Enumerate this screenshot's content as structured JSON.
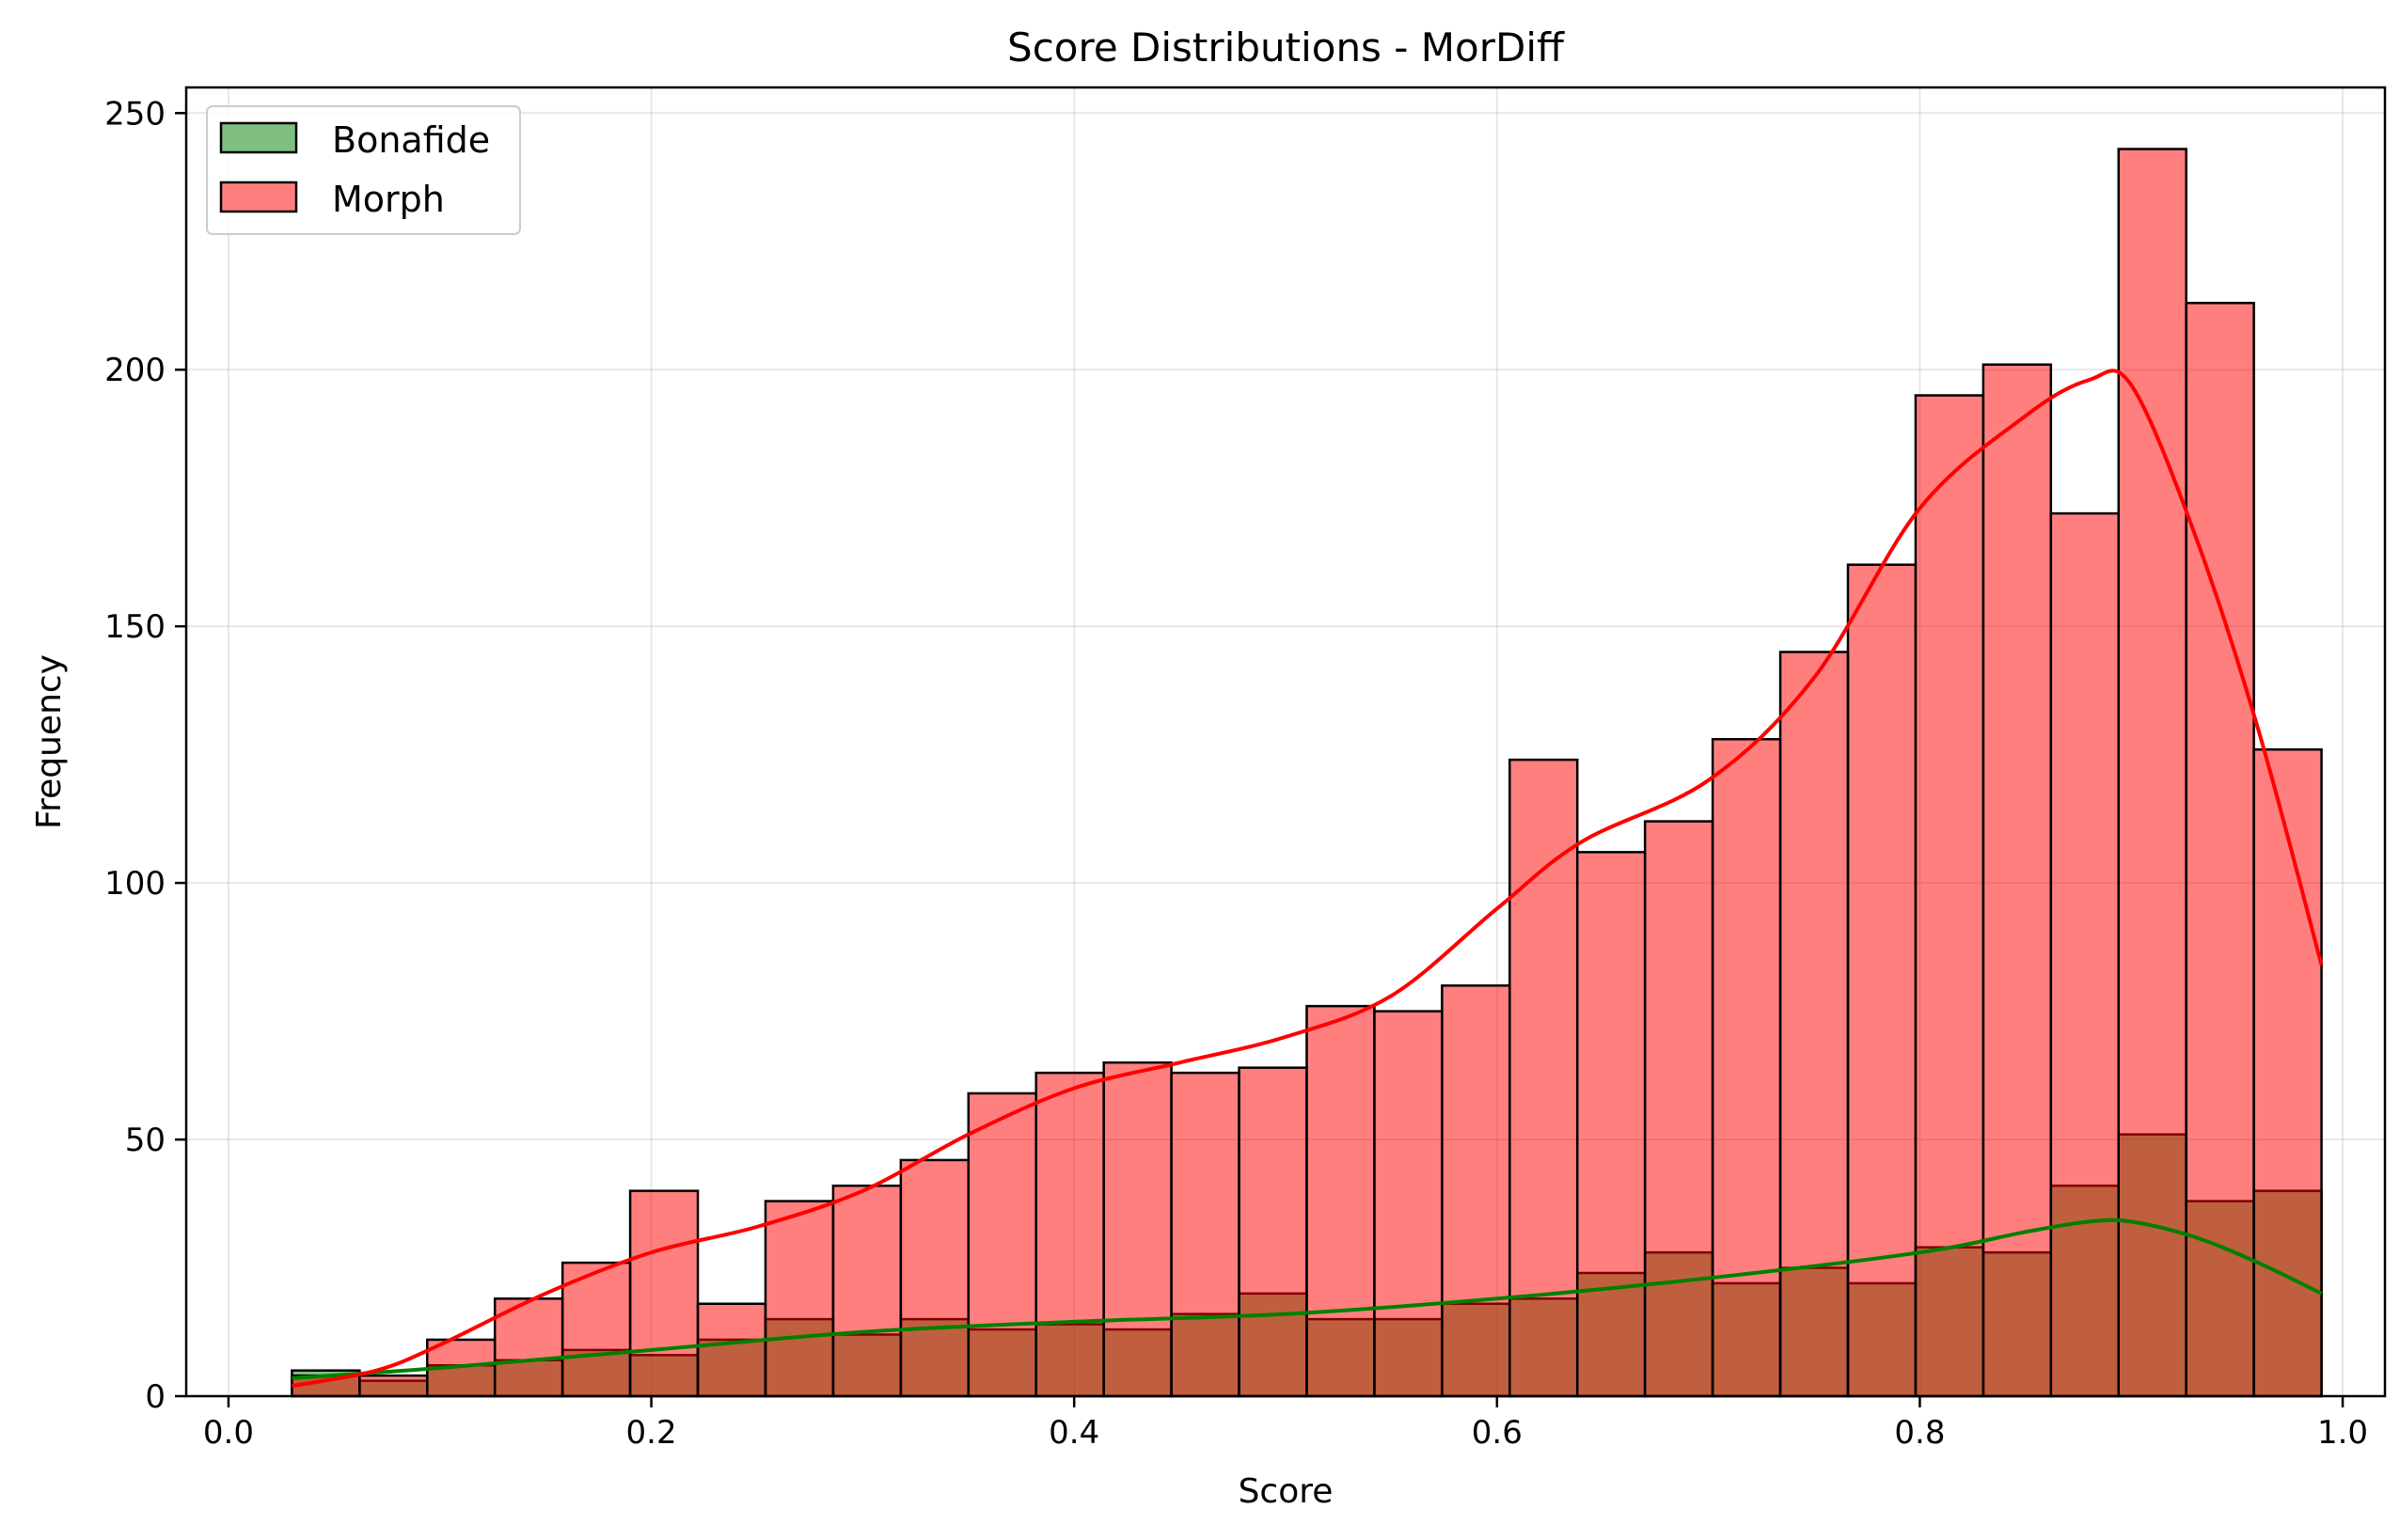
{
  "chart_data": {
    "type": "histogram",
    "title": "Score Distributions - MorDiff",
    "xlabel": "Score",
    "ylabel": "Frequency",
    "xlim": [
      -0.02,
      1.02
    ],
    "ylim": [
      0,
      255
    ],
    "xticks": [
      0.0,
      0.2,
      0.4,
      0.6,
      0.8,
      1.0
    ],
    "xtick_labels": [
      "0.0",
      "0.2",
      "0.4",
      "0.6",
      "0.8",
      "1.0"
    ],
    "yticks": [
      0,
      50,
      100,
      150,
      200,
      250
    ],
    "ytick_labels": [
      "0",
      "50",
      "100",
      "150",
      "200",
      "250"
    ],
    "grid": true,
    "legend_position": "top-left",
    "bin_edges": [
      0.03,
      0.062,
      0.094,
      0.126,
      0.158,
      0.19,
      0.222,
      0.254,
      0.286,
      0.318,
      0.35,
      0.382,
      0.414,
      0.446,
      0.478,
      0.51,
      0.542,
      0.574,
      0.606,
      0.638,
      0.67,
      0.702,
      0.734,
      0.766,
      0.798,
      0.83,
      0.862,
      0.894,
      0.926,
      0.958,
      0.99
    ],
    "series": [
      {
        "name": "Bonafide",
        "color": "#008000",
        "fill": "rgba(0,128,0,0.5)",
        "kde_color": "#008000",
        "values": [
          5,
          3,
          6,
          7,
          9,
          8,
          11,
          15,
          12,
          15,
          13,
          14,
          13,
          16,
          20,
          15,
          15,
          18,
          19,
          24,
          28,
          22,
          25,
          22,
          29,
          28,
          41,
          51,
          38,
          40
        ],
        "kde": [
          [
            0.03,
            3.5
          ],
          [
            0.1,
            5.5
          ],
          [
            0.2,
            9
          ],
          [
            0.3,
            12.5
          ],
          [
            0.4,
            14.5
          ],
          [
            0.5,
            16
          ],
          [
            0.6,
            19
          ],
          [
            0.7,
            23
          ],
          [
            0.8,
            28
          ],
          [
            0.85,
            32
          ],
          [
            0.88,
            34
          ],
          [
            0.9,
            34
          ],
          [
            0.93,
            31
          ],
          [
            0.96,
            26
          ],
          [
            0.99,
            20
          ]
        ]
      },
      {
        "name": "Morph",
        "color": "#ff0000",
        "fill": "rgba(255,0,0,0.5)",
        "kde_color": "#ff0000",
        "values": [
          4,
          4,
          11,
          19,
          26,
          40,
          18,
          38,
          41,
          46,
          59,
          63,
          65,
          63,
          64,
          76,
          75,
          80,
          124,
          106,
          112,
          128,
          145,
          162,
          195,
          201,
          172,
          243,
          213,
          126
        ],
        "kde": [
          [
            0.03,
            2
          ],
          [
            0.07,
            5
          ],
          [
            0.1,
            10
          ],
          [
            0.15,
            20
          ],
          [
            0.2,
            28
          ],
          [
            0.25,
            33
          ],
          [
            0.3,
            40
          ],
          [
            0.35,
            51
          ],
          [
            0.4,
            60
          ],
          [
            0.45,
            65
          ],
          [
            0.5,
            70
          ],
          [
            0.55,
            78
          ],
          [
            0.6,
            95
          ],
          [
            0.64,
            108
          ],
          [
            0.7,
            120
          ],
          [
            0.75,
            140
          ],
          [
            0.8,
            173
          ],
          [
            0.85,
            191
          ],
          [
            0.88,
            198
          ],
          [
            0.9,
            197
          ],
          [
            0.93,
            168
          ],
          [
            0.96,
            130
          ],
          [
            0.99,
            84
          ]
        ]
      }
    ]
  }
}
